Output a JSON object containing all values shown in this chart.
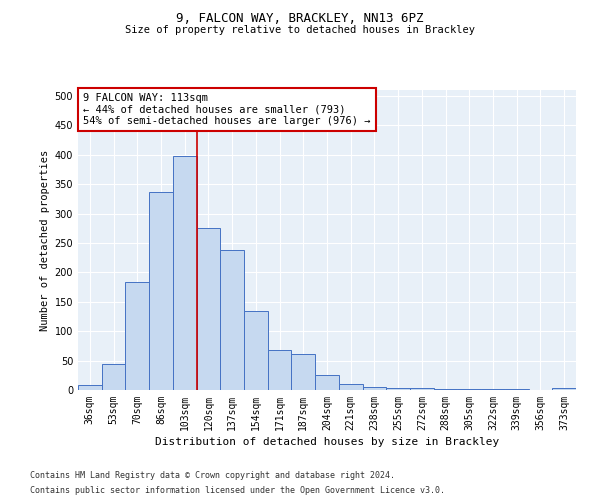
{
  "title1": "9, FALCON WAY, BRACKLEY, NN13 6PZ",
  "title2": "Size of property relative to detached houses in Brackley",
  "xlabel": "Distribution of detached houses by size in Brackley",
  "ylabel": "Number of detached properties",
  "categories": [
    "36sqm",
    "53sqm",
    "70sqm",
    "86sqm",
    "103sqm",
    "120sqm",
    "137sqm",
    "154sqm",
    "171sqm",
    "187sqm",
    "204sqm",
    "221sqm",
    "238sqm",
    "255sqm",
    "272sqm",
    "288sqm",
    "305sqm",
    "322sqm",
    "339sqm",
    "356sqm",
    "373sqm"
  ],
  "values": [
    8,
    45,
    184,
    337,
    397,
    275,
    238,
    135,
    68,
    62,
    25,
    11,
    5,
    4,
    3,
    2,
    2,
    1,
    1,
    0,
    4
  ],
  "bar_color": "#c6d9f0",
  "bar_edge_color": "#4472c4",
  "property_line_x": 4.5,
  "property_line_color": "#cc0000",
  "annotation_text": "9 FALCON WAY: 113sqm\n← 44% of detached houses are smaller (793)\n54% of semi-detached houses are larger (976) →",
  "annotation_box_color": "#ffffff",
  "annotation_box_edge": "#cc0000",
  "footnote1": "Contains HM Land Registry data © Crown copyright and database right 2024.",
  "footnote2": "Contains public sector information licensed under the Open Government Licence v3.0.",
  "background_color": "#e8f0f8",
  "ylim": [
    0,
    510
  ],
  "yticks": [
    0,
    50,
    100,
    150,
    200,
    250,
    300,
    350,
    400,
    450,
    500
  ]
}
